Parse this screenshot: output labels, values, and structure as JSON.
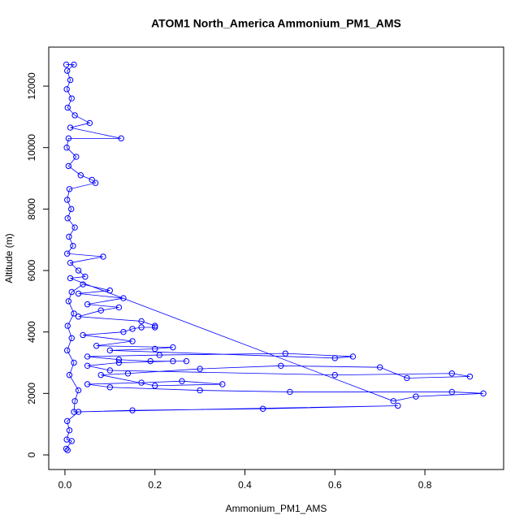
{
  "chart_data": {
    "type": "line",
    "title": "ATOM1 North_America Ammonium_PM1_AMS",
    "xlabel": "Ammonium_PM1_AMS",
    "ylabel": "Altitude (m)",
    "color": "#0000ff",
    "markers": "circle",
    "xlim": [
      -0.036,
      0.975
    ],
    "ylim": [
      -476,
      13270
    ],
    "xticks": [
      {
        "value": 0,
        "label": "0.0"
      },
      0.2,
      0.4,
      0.6,
      0.8
    ],
    "yticks": [
      0,
      2000,
      4000,
      6000,
      8000,
      10000,
      12000
    ],
    "x": [
      0.003,
      0.02,
      0.005,
      0.012,
      0.004,
      0.015,
      0.006,
      0.022,
      0.055,
      0.012,
      0.125,
      0.008,
      0.004,
      0.025,
      0.008,
      0.035,
      0.06,
      0.068,
      0.01,
      0.005,
      0.014,
      0.006,
      0.022,
      0.009,
      0.018,
      0.005,
      0.085,
      0.012,
      0.03,
      0.045,
      0.012,
      0.73,
      0.78,
      0.93,
      0.86,
      0.5,
      0.3,
      0.1,
      0.05,
      0.17,
      0.26,
      0.35,
      0.2,
      0.08,
      0.14,
      0.3,
      0.48,
      0.7,
      0.76,
      0.9,
      0.86,
      0.6,
      0.1,
      0.05,
      0.12,
      0.24,
      0.27,
      0.19,
      0.12,
      0.05,
      0.21,
      0.49,
      0.64,
      0.6,
      0.1,
      0.2,
      0.24,
      0.07,
      0.15,
      0.04,
      0.13,
      0.15,
      0.17,
      0.2,
      0.2,
      0.17,
      0.03,
      0.08,
      0.12,
      0.05,
      0.13,
      0.03,
      0.1,
      0.04,
      0.015,
      0.008,
      0.02,
      0.006,
      0.015,
      0.005,
      0.02,
      0.01,
      0.03,
      0.022,
      0.02,
      0.74,
      0.44,
      0.15,
      0.03,
      0.005,
      0.01,
      0.004,
      0.015,
      0.003,
      0.006
    ],
    "values": [
      12700,
      12700,
      12500,
      12200,
      11900,
      11600,
      11300,
      11050,
      10800,
      10650,
      10300,
      10300,
      10000,
      9700,
      9400,
      9100,
      8950,
      8850,
      8650,
      8300,
      8000,
      7700,
      7400,
      7100,
      6800,
      6550,
      6450,
      6250,
      6000,
      5800,
      5750,
      1750,
      1900,
      2000,
      2050,
      2050,
      2100,
      2200,
      2300,
      2350,
      2400,
      2300,
      2250,
      2600,
      2650,
      2800,
      2900,
      2850,
      2500,
      2550,
      2650,
      2600,
      2750,
      2900,
      3000,
      3050,
      3050,
      3050,
      3100,
      3200,
      3250,
      3300,
      3200,
      3150,
      3400,
      3450,
      3500,
      3550,
      3700,
      3900,
      4000,
      4100,
      4150,
      4150,
      4200,
      4350,
      4500,
      4700,
      4800,
      4900,
      5100,
      5250,
      5350,
      5550,
      5300,
      5000,
      4600,
      4200,
      3800,
      3400,
      3000,
      2600,
      2100,
      1750,
      1400,
      1600,
      1500,
      1450,
      1400,
      1100,
      800,
      500,
      450,
      200,
      150
    ]
  }
}
